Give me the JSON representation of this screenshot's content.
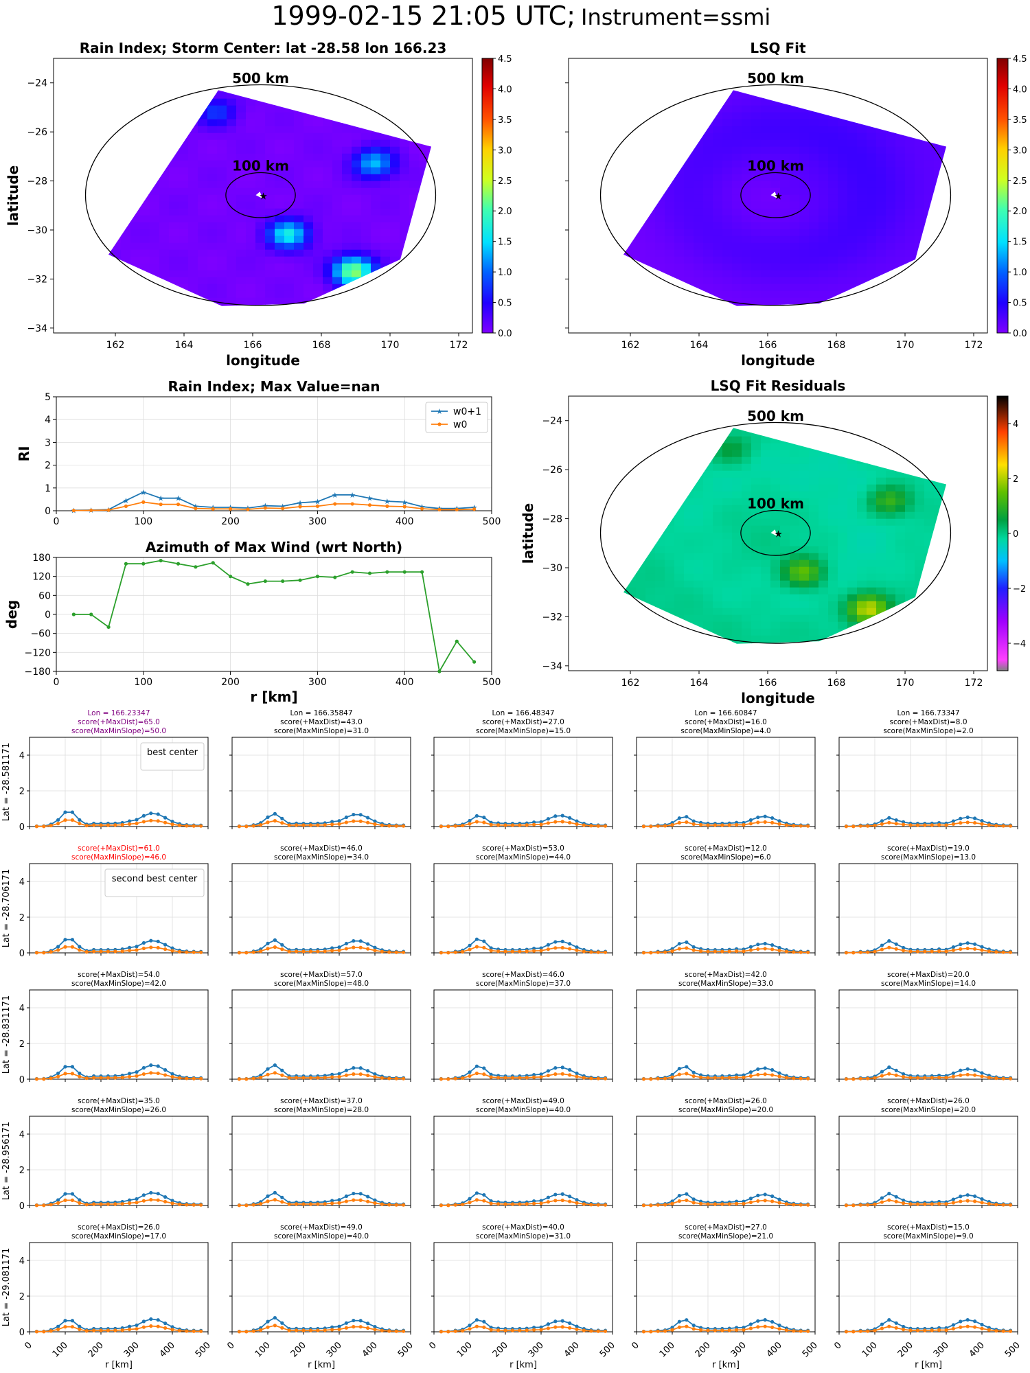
{
  "title": {
    "datetime": "1999-02-15 21:05 UTC;",
    "instrument": "Instrument=ssmi"
  },
  "range_labels": {
    "outer": "500 km",
    "inner": "100 km"
  },
  "colors": {
    "w0p1": "#1f77b4",
    "w0": "#ff7f0e",
    "azimuth": "#2ca02c",
    "best_title": "#800080",
    "second_title": "#ff0000",
    "grid": "#dddddd"
  },
  "chart_data": [
    {
      "id": "rain_index_map",
      "type": "heatmap",
      "title": "Rain Index; Storm Center: lat -28.58 lon 166.23",
      "xlabel": "longitude",
      "ylabel": "latitude",
      "xlim": [
        160.2,
        172.4
      ],
      "ylim": [
        -34.2,
        -23
      ],
      "xticks": [
        162,
        164,
        166,
        168,
        170,
        172
      ],
      "yticks": [
        -24,
        -26,
        -28,
        -30,
        -32,
        -34
      ],
      "center": [
        166.23,
        -28.58
      ],
      "colorbar": {
        "colormap": "gnuplot2_r-like",
        "range": [
          0,
          4.5
        ],
        "ticks": [
          "0.0",
          "0.5",
          "1.0",
          "1.5",
          "2.0",
          "2.5",
          "3.0",
          "3.5",
          "4.0",
          "4.5"
        ]
      },
      "features": [
        {
          "lon": 168.8,
          "lat": -31.8,
          "value": 2.3
        },
        {
          "lon": 166.9,
          "lat": -30.3,
          "value": 1.6
        },
        {
          "lon": 169.4,
          "lat": -27.4,
          "value": 1.3
        },
        {
          "lon": 164.8,
          "lat": -25.3,
          "value": 0.7
        }
      ]
    },
    {
      "id": "lsq_fit_map",
      "type": "heatmap",
      "title": "LSQ Fit",
      "xlabel": "longitude",
      "xlim": [
        160.2,
        172.4
      ],
      "ylim": [
        -34.2,
        -23
      ],
      "xticks": [
        162,
        164,
        166,
        168,
        170,
        172
      ],
      "center": [
        166.23,
        -28.58
      ],
      "colorbar": {
        "range": [
          0,
          4.5
        ],
        "ticks": [
          "0.0",
          "0.5",
          "1.0",
          "1.5",
          "2.0",
          "2.5",
          "3.0",
          "3.5",
          "4.0",
          "4.5"
        ]
      }
    },
    {
      "id": "rain_index_profile",
      "type": "line",
      "title": "Rain Index; Max Value=nan",
      "ylabel": "RI",
      "xlim": [
        0,
        500
      ],
      "ylim": [
        0,
        5
      ],
      "xticks": [
        0,
        100,
        200,
        300,
        400,
        500
      ],
      "yticks": [
        0,
        1,
        2,
        3,
        4,
        5
      ],
      "x": [
        20,
        40,
        60,
        80,
        100,
        120,
        140,
        160,
        180,
        200,
        220,
        240,
        260,
        280,
        300,
        320,
        340,
        360,
        380,
        400,
        420,
        440,
        460,
        480
      ],
      "series": [
        {
          "name": "w0+1",
          "values": [
            0.02,
            0.03,
            0.05,
            0.45,
            0.82,
            0.55,
            0.55,
            0.2,
            0.15,
            0.15,
            0.12,
            0.22,
            0.2,
            0.35,
            0.4,
            0.7,
            0.7,
            0.55,
            0.42,
            0.38,
            0.18,
            0.1,
            0.1,
            0.15
          ]
        },
        {
          "name": "w0",
          "values": [
            0.01,
            0.02,
            0.03,
            0.2,
            0.38,
            0.28,
            0.28,
            0.1,
            0.08,
            0.08,
            0.06,
            0.12,
            0.1,
            0.18,
            0.2,
            0.3,
            0.3,
            0.25,
            0.2,
            0.18,
            0.09,
            0.05,
            0.05,
            0.07
          ]
        }
      ],
      "legend": "top-right"
    },
    {
      "id": "azimuth_profile",
      "type": "line",
      "title": "Azimuth of Max Wind (wrt North)",
      "xlabel": "r [km]",
      "ylabel": "deg",
      "xlim": [
        0,
        500
      ],
      "ylim": [
        -180,
        180
      ],
      "xticks": [
        0,
        100,
        200,
        300,
        400,
        500
      ],
      "yticks": [
        180,
        120,
        60,
        0,
        -60,
        -120,
        -180
      ],
      "x": [
        20,
        40,
        60,
        80,
        100,
        120,
        140,
        160,
        180,
        200,
        220,
        240,
        260,
        280,
        300,
        320,
        340,
        360,
        380,
        400,
        420,
        440,
        460,
        480
      ],
      "values": [
        0,
        0,
        -40,
        160,
        160,
        170,
        160,
        150,
        163,
        120,
        96,
        105,
        105,
        108,
        120,
        117,
        134,
        130,
        134,
        134,
        134,
        -180,
        -85,
        -150
      ]
    },
    {
      "id": "residuals_map",
      "type": "heatmap",
      "title": "LSQ Fit Residuals",
      "xlabel": "longitude",
      "ylabel": "latitude",
      "xlim": [
        160.2,
        172.4
      ],
      "ylim": [
        -34.2,
        -23
      ],
      "xticks": [
        162,
        164,
        166,
        168,
        170,
        172
      ],
      "yticks": [
        -24,
        -26,
        -28,
        -30,
        -32,
        -34
      ],
      "center": [
        166.23,
        -28.58
      ],
      "colorbar": {
        "range": [
          -5,
          5
        ],
        "ticks": [
          "4",
          "2",
          "0",
          "−2",
          "−4"
        ]
      }
    },
    {
      "id": "center_grid",
      "type": "line",
      "xlabel": "r [km]",
      "xlim": [
        0,
        500
      ],
      "ylim": [
        0,
        5
      ],
      "xticks": [
        0,
        100,
        200,
        300,
        400,
        500
      ],
      "yticks": [
        0,
        2,
        4
      ],
      "x": [
        20,
        40,
        60,
        80,
        100,
        120,
        140,
        160,
        180,
        200,
        220,
        240,
        260,
        280,
        300,
        320,
        340,
        360,
        380,
        400,
        420,
        440,
        460,
        480
      ],
      "lons": [
        "Lon = 166.23347",
        "Lon = 166.35847",
        "Lon = 166.48347",
        "Lon = 166.60847",
        "Lon = 166.73347"
      ],
      "lats": [
        "Lat = -28.581171",
        "Lat = -28.706171",
        "Lat = -28.831171",
        "Lat = -28.956171",
        "Lat = -29.081171"
      ],
      "best_label": "best center",
      "second_label": "second best center",
      "scores": [
        [
          [
            "score(+MaxDist)=65.0",
            "score(MaxMinSlope)=50.0"
          ],
          [
            "score(+MaxDist)=43.0",
            "score(MaxMinSlope)=31.0"
          ],
          [
            "score(+MaxDist)=27.0",
            "score(MaxMinSlope)=15.0"
          ],
          [
            "score(+MaxDist)=16.0",
            "score(MaxMinSlope)=4.0"
          ],
          [
            "score(+MaxDist)=8.0",
            "score(MaxMinSlope)=2.0"
          ]
        ],
        [
          [
            "score(+MaxDist)=61.0",
            "score(MaxMinSlope)=46.0"
          ],
          [
            "score(+MaxDist)=46.0",
            "score(MaxMinSlope)=34.0"
          ],
          [
            "score(+MaxDist)=53.0",
            "score(MaxMinSlope)=44.0"
          ],
          [
            "score(+MaxDist)=12.0",
            "score(MaxMinSlope)=6.0"
          ],
          [
            "score(+MaxDist)=19.0",
            "score(MaxMinSlope)=13.0"
          ]
        ],
        [
          [
            "score(+MaxDist)=54.0",
            "score(MaxMinSlope)=42.0"
          ],
          [
            "score(+MaxDist)=57.0",
            "score(MaxMinSlope)=48.0"
          ],
          [
            "score(+MaxDist)=46.0",
            "score(MaxMinSlope)=37.0"
          ],
          [
            "score(+MaxDist)=42.0",
            "score(MaxMinSlope)=33.0"
          ],
          [
            "score(+MaxDist)=20.0",
            "score(MaxMinSlope)=14.0"
          ]
        ],
        [
          [
            "score(+MaxDist)=35.0",
            "score(MaxMinSlope)=26.0"
          ],
          [
            "score(+MaxDist)=37.0",
            "score(MaxMinSlope)=28.0"
          ],
          [
            "score(+MaxDist)=49.0",
            "score(MaxMinSlope)=40.0"
          ],
          [
            "score(+MaxDist)=26.0",
            "score(MaxMinSlope)=20.0"
          ],
          [
            "score(+MaxDist)=26.0",
            "score(MaxMinSlope)=20.0"
          ]
        ],
        [
          [
            "score(+MaxDist)=26.0",
            "score(MaxMinSlope)=17.0"
          ],
          [
            "score(+MaxDist)=49.0",
            "score(MaxMinSlope)=40.0"
          ],
          [
            "score(+MaxDist)=40.0",
            "score(MaxMinSlope)=31.0"
          ],
          [
            "score(+MaxDist)=27.0",
            "score(MaxMinSlope)=21.0"
          ],
          [
            "score(+MaxDist)=15.0",
            "score(MaxMinSlope)=9.0"
          ]
        ]
      ],
      "peaks": [
        [
          [
            0.82,
            0.68
          ],
          [
            0.65,
            0.62
          ],
          [
            0.55,
            0.55
          ],
          [
            0.5,
            0.5
          ],
          [
            0.42,
            0.45
          ]
        ],
        [
          [
            0.75,
            0.62
          ],
          [
            0.65,
            0.62
          ],
          [
            0.72,
            0.58
          ],
          [
            0.55,
            0.45
          ],
          [
            0.6,
            0.48
          ]
        ],
        [
          [
            0.7,
            0.72
          ],
          [
            0.72,
            0.58
          ],
          [
            0.68,
            0.6
          ],
          [
            0.65,
            0.55
          ],
          [
            0.6,
            0.5
          ]
        ],
        [
          [
            0.65,
            0.65
          ],
          [
            0.65,
            0.62
          ],
          [
            0.65,
            0.58
          ],
          [
            0.6,
            0.55
          ],
          [
            0.6,
            0.52
          ]
        ],
        [
          [
            0.62,
            0.65
          ],
          [
            0.72,
            0.58
          ],
          [
            0.62,
            0.55
          ],
          [
            0.62,
            0.6
          ],
          [
            0.6,
            0.6
          ]
        ]
      ]
    }
  ]
}
